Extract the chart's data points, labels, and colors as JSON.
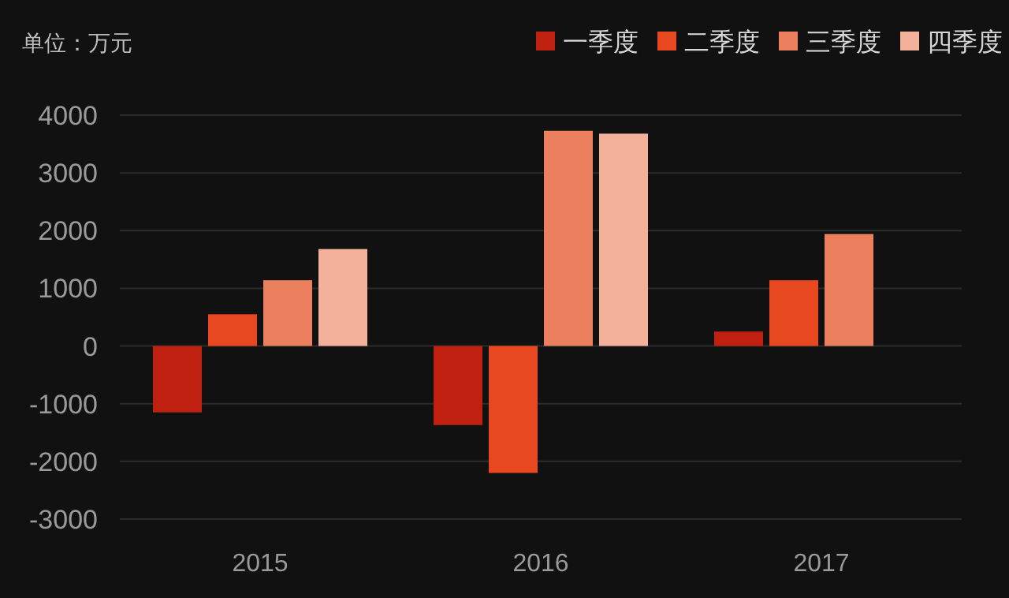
{
  "chart_data": {
    "type": "bar",
    "ylabel": "单位：万元",
    "categories": [
      "2015",
      "2016",
      "2017"
    ],
    "series": [
      {
        "name": "一季度",
        "color": "#c0200f",
        "values": [
          -1150,
          -1370,
          250
        ]
      },
      {
        "name": "二季度",
        "color": "#e8481f",
        "values": [
          550,
          -2200,
          1140
        ]
      },
      {
        "name": "三季度",
        "color": "#ec7f5e",
        "values": [
          1140,
          3730,
          1940
        ]
      },
      {
        "name": "四季度",
        "color": "#f3b09a",
        "values": [
          1680,
          3680,
          null
        ]
      }
    ],
    "ylim": [
      -3000,
      4000
    ],
    "yticks": [
      -3000,
      -2000,
      -1000,
      0,
      1000,
      2000,
      3000,
      4000
    ],
    "grid": "y",
    "legend": "top right"
  }
}
